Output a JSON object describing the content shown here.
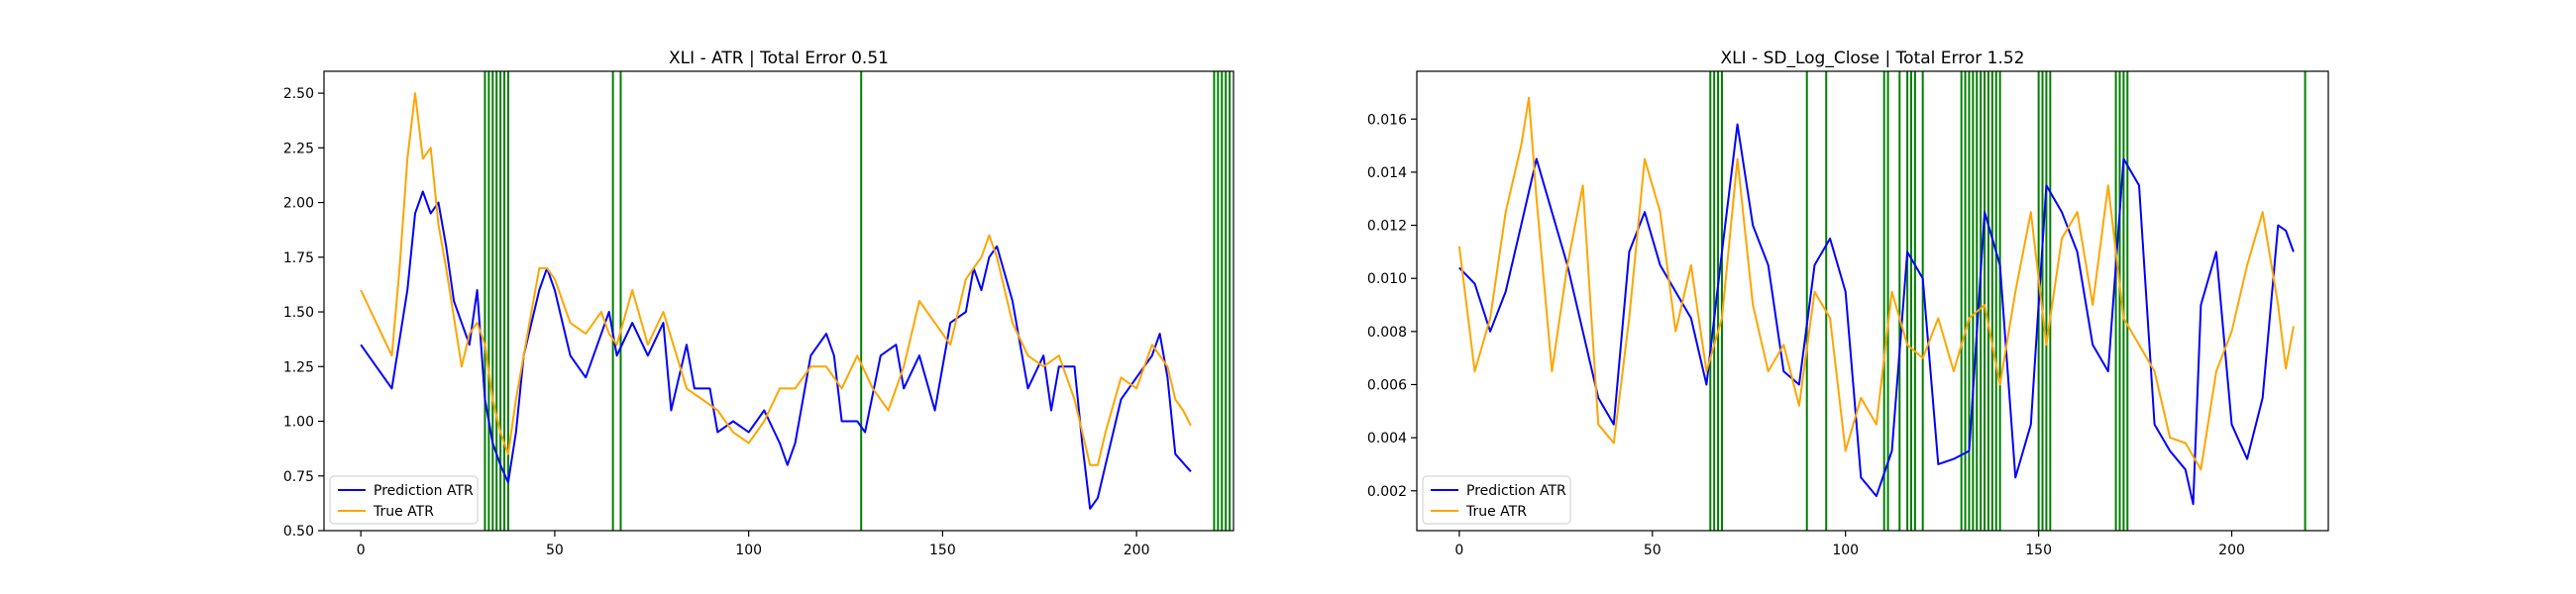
{
  "chart_data": [
    {
      "type": "line",
      "title": "XLI - ATR | Total Error 0.51",
      "xlabel": "",
      "ylabel": "",
      "xlim": [
        -9.5,
        225
      ],
      "ylim": [
        0.5,
        2.6
      ],
      "xticks": [
        0,
        50,
        100,
        150,
        200
      ],
      "yticks": [
        0.5,
        0.75,
        1.0,
        1.25,
        1.5,
        1.75,
        2.0,
        2.25,
        2.5
      ],
      "ytick_labels": [
        "0.50",
        "0.75",
        "1.00",
        "1.25",
        "1.50",
        "1.75",
        "2.00",
        "2.25",
        "2.50"
      ],
      "grid": false,
      "legend_position": "lower left",
      "vlines": [
        32,
        33,
        34,
        35,
        36,
        37,
        38,
        65,
        67,
        129,
        220,
        221,
        222,
        223,
        224
      ],
      "series": [
        {
          "name": "Prediction ATR",
          "color": "#0000ff",
          "x": [
            0,
            4,
            8,
            12,
            14,
            16,
            18,
            20,
            22,
            24,
            28,
            30,
            32,
            34,
            36,
            38,
            40,
            42,
            46,
            48,
            50,
            54,
            58,
            62,
            64,
            66,
            70,
            74,
            78,
            80,
            84,
            86,
            90,
            92,
            96,
            100,
            104,
            108,
            110,
            112,
            116,
            120,
            122,
            124,
            128,
            130,
            134,
            138,
            140,
            144,
            148,
            152,
            156,
            158,
            160,
            162,
            164,
            168,
            172,
            176,
            178,
            180,
            184,
            186,
            188,
            190,
            192,
            196,
            200,
            204,
            206,
            208,
            210,
            214
          ],
          "y": [
            1.35,
            1.25,
            1.15,
            1.6,
            1.95,
            2.05,
            1.95,
            2.0,
            1.8,
            1.55,
            1.35,
            1.6,
            1.1,
            0.9,
            0.8,
            0.72,
            0.95,
            1.3,
            1.6,
            1.7,
            1.6,
            1.3,
            1.2,
            1.4,
            1.5,
            1.3,
            1.45,
            1.3,
            1.45,
            1.05,
            1.35,
            1.15,
            1.15,
            0.95,
            1.0,
            0.95,
            1.05,
            0.9,
            0.8,
            0.9,
            1.3,
            1.4,
            1.3,
            1.0,
            1.0,
            0.95,
            1.3,
            1.35,
            1.15,
            1.3,
            1.05,
            1.45,
            1.5,
            1.7,
            1.6,
            1.75,
            1.8,
            1.55,
            1.15,
            1.3,
            1.05,
            1.25,
            1.25,
            0.9,
            0.6,
            0.65,
            0.8,
            1.1,
            1.2,
            1.3,
            1.4,
            1.2,
            0.85,
            0.77
          ]
        },
        {
          "name": "True ATR",
          "color": "#ffa500",
          "x": [
            0,
            4,
            8,
            10,
            12,
            14,
            16,
            18,
            20,
            22,
            26,
            28,
            30,
            32,
            34,
            36,
            38,
            40,
            44,
            46,
            48,
            50,
            54,
            58,
            62,
            64,
            66,
            70,
            74,
            78,
            84,
            88,
            92,
            96,
            100,
            104,
            108,
            112,
            116,
            120,
            124,
            128,
            132,
            136,
            140,
            144,
            148,
            152,
            156,
            160,
            162,
            164,
            168,
            172,
            176,
            180,
            184,
            188,
            190,
            192,
            196,
            200,
            204,
            208,
            210,
            212,
            214
          ],
          "y": [
            1.6,
            1.45,
            1.3,
            1.7,
            2.2,
            2.5,
            2.2,
            2.25,
            1.9,
            1.7,
            1.25,
            1.4,
            1.45,
            1.35,
            1.1,
            0.95,
            0.85,
            1.1,
            1.5,
            1.7,
            1.7,
            1.65,
            1.45,
            1.4,
            1.5,
            1.4,
            1.35,
            1.6,
            1.35,
            1.5,
            1.15,
            1.1,
            1.05,
            0.95,
            0.9,
            1.0,
            1.15,
            1.15,
            1.25,
            1.25,
            1.15,
            1.3,
            1.15,
            1.05,
            1.25,
            1.55,
            1.45,
            1.35,
            1.65,
            1.75,
            1.85,
            1.75,
            1.45,
            1.3,
            1.25,
            1.3,
            1.1,
            0.8,
            0.8,
            0.95,
            1.2,
            1.15,
            1.35,
            1.25,
            1.1,
            1.05,
            0.98
          ]
        }
      ]
    },
    {
      "type": "line",
      "title": "XLI - SD_Log_Close | Total Error 1.52",
      "xlabel": "",
      "ylabel": "",
      "xlim": [
        -11,
        225
      ],
      "ylim": [
        0.0005,
        0.0178
      ],
      "xticks": [
        0,
        50,
        100,
        150,
        200
      ],
      "yticks": [
        0.002,
        0.004,
        0.006,
        0.008,
        0.01,
        0.012,
        0.014,
        0.016
      ],
      "ytick_labels": [
        "0.002",
        "0.004",
        "0.006",
        "0.008",
        "0.010",
        "0.012",
        "0.014",
        "0.016"
      ],
      "grid": false,
      "legend_position": "lower left",
      "vlines": [
        65,
        66,
        67,
        68,
        90,
        95,
        110,
        111,
        114,
        116,
        117,
        118,
        120,
        130,
        131,
        132,
        133,
        134,
        135,
        136,
        137,
        138,
        139,
        140,
        150,
        151,
        152,
        153,
        170,
        171,
        172,
        173,
        219
      ],
      "series": [
        {
          "name": "Prediction ATR",
          "color": "#0000ff",
          "x": [
            0,
            4,
            8,
            12,
            16,
            20,
            24,
            28,
            32,
            36,
            40,
            44,
            48,
            52,
            56,
            60,
            64,
            68,
            72,
            76,
            80,
            84,
            88,
            92,
            96,
            100,
            104,
            108,
            112,
            116,
            120,
            124,
            128,
            132,
            136,
            140,
            144,
            148,
            152,
            156,
            160,
            164,
            168,
            172,
            176,
            180,
            184,
            188,
            190,
            192,
            196,
            200,
            204,
            208,
            212,
            214,
            216
          ],
          "y": [
            0.0104,
            0.0098,
            0.008,
            0.0095,
            0.012,
            0.0145,
            0.0125,
            0.0105,
            0.008,
            0.0055,
            0.0045,
            0.011,
            0.0125,
            0.0105,
            0.0095,
            0.0085,
            0.006,
            0.011,
            0.0158,
            0.012,
            0.0105,
            0.0065,
            0.006,
            0.0105,
            0.0115,
            0.0095,
            0.0025,
            0.0018,
            0.0035,
            0.011,
            0.01,
            0.003,
            0.0032,
            0.0035,
            0.0125,
            0.0105,
            0.0025,
            0.0045,
            0.0135,
            0.0125,
            0.011,
            0.0075,
            0.0065,
            0.0145,
            0.0135,
            0.0045,
            0.0035,
            0.0028,
            0.0015,
            0.009,
            0.011,
            0.0045,
            0.0032,
            0.0055,
            0.012,
            0.0118,
            0.011
          ]
        },
        {
          "name": "True ATR",
          "color": "#ffa500",
          "x": [
            0,
            4,
            8,
            12,
            16,
            18,
            20,
            24,
            28,
            32,
            36,
            40,
            44,
            48,
            52,
            56,
            60,
            64,
            68,
            72,
            76,
            80,
            84,
            88,
            92,
            96,
            100,
            104,
            108,
            112,
            116,
            120,
            124,
            128,
            132,
            136,
            140,
            144,
            148,
            152,
            156,
            160,
            164,
            168,
            172,
            176,
            180,
            184,
            188,
            192,
            196,
            200,
            204,
            208,
            212,
            214,
            216
          ],
          "y": [
            0.0112,
            0.0065,
            0.0085,
            0.0125,
            0.015,
            0.0168,
            0.013,
            0.0065,
            0.0105,
            0.0135,
            0.0045,
            0.0038,
            0.0085,
            0.0145,
            0.0125,
            0.008,
            0.0105,
            0.0065,
            0.0085,
            0.0145,
            0.009,
            0.0065,
            0.0075,
            0.0052,
            0.0095,
            0.0085,
            0.0035,
            0.0055,
            0.0045,
            0.0095,
            0.0075,
            0.007,
            0.0085,
            0.0065,
            0.0085,
            0.009,
            0.006,
            0.0095,
            0.0125,
            0.0075,
            0.0115,
            0.0125,
            0.009,
            0.0135,
            0.0085,
            0.0075,
            0.0065,
            0.004,
            0.0038,
            0.0028,
            0.0065,
            0.008,
            0.0105,
            0.0125,
            0.009,
            0.0066,
            0.0082
          ]
        }
      ]
    }
  ]
}
